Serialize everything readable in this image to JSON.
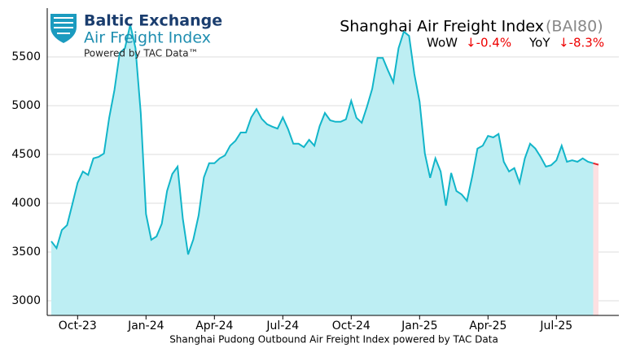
{
  "header": {
    "brand": "Baltic Exchange",
    "product": "Air Freight Index",
    "powered": "Powered by TAC Data™"
  },
  "stats": [
    {
      "label": "WoW",
      "change": "↓-0.4%"
    },
    {
      "label": "YoY",
      "change": "↓-8.3%"
    }
  ],
  "chart_data": {
    "type": "line",
    "title": "Shanghai Air Freight Index",
    "code": "(BAI80)",
    "caption": "Shanghai Pudong Outbound Air Freight Index powered by TAC Data",
    "categories": [
      null,
      null,
      null,
      null,
      null,
      "Oct-23",
      null,
      null,
      null,
      null,
      null,
      null,
      null,
      null,
      null,
      null,
      null,
      null,
      "Jan-24",
      null,
      null,
      null,
      null,
      null,
      null,
      null,
      null,
      null,
      null,
      null,
      null,
      "Apr-24",
      null,
      null,
      null,
      null,
      null,
      null,
      null,
      null,
      null,
      null,
      null,
      null,
      "Jul-24",
      null,
      null,
      null,
      null,
      null,
      null,
      null,
      null,
      null,
      null,
      null,
      null,
      "Oct-24",
      null,
      null,
      null,
      null,
      null,
      null,
      null,
      null,
      null,
      null,
      null,
      null,
      "Jan-25",
      null,
      null,
      null,
      null,
      null,
      null,
      null,
      null,
      null,
      null,
      null,
      null,
      "Apr-25",
      null,
      null,
      null,
      null,
      null,
      null,
      null,
      null,
      null,
      null,
      null,
      null,
      "Jul-25",
      null,
      null,
      null,
      null,
      null,
      null,
      null,
      null
    ],
    "series": [
      {
        "name": "BAI80",
        "color": "#12b5c9",
        "fill": "#bdeef3",
        "down_color": "#e8262d",
        "down_fill": "#fde0e2",
        "values": [
          3610,
          3540,
          3725,
          3775,
          3990,
          4210,
          4325,
          4290,
          4460,
          4475,
          4510,
          4875,
          5160,
          5540,
          5590,
          5830,
          5590,
          4925,
          3890,
          3625,
          3660,
          3790,
          4125,
          4300,
          4375,
          3840,
          3475,
          3630,
          3875,
          4265,
          4410,
          4410,
          4460,
          4490,
          4590,
          4640,
          4725,
          4725,
          4880,
          4965,
          4865,
          4810,
          4785,
          4765,
          4880,
          4760,
          4610,
          4610,
          4575,
          4650,
          4590,
          4790,
          4925,
          4850,
          4835,
          4835,
          4860,
          5050,
          4875,
          4825,
          4990,
          5175,
          5490,
          5490,
          5360,
          5240,
          5590,
          5760,
          5715,
          5325,
          5040,
          4510,
          4260,
          4460,
          4325,
          3975,
          4310,
          4125,
          4090,
          4025,
          4275,
          4560,
          4590,
          4690,
          4675,
          4710,
          4425,
          4325,
          4360,
          4210,
          4460,
          4610,
          4560,
          4475,
          4375,
          4390,
          4440,
          4590,
          4425,
          4440,
          4425,
          4460,
          4425,
          4410,
          4395
        ]
      }
    ],
    "ylim": [
      2850,
      6000
    ],
    "yticks": [
      3000,
      3500,
      4000,
      4500,
      5000,
      5500
    ],
    "grid": true
  }
}
